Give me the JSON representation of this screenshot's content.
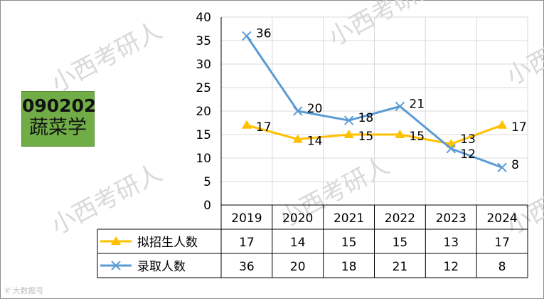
{
  "badge": {
    "code": "090202",
    "name": "蔬菜学"
  },
  "watermark": "小西考研人",
  "bottom_logo": "𝒞 大数据号",
  "colors": {
    "plan": "#ffc000",
    "admit": "#5b9bd5",
    "badge_bg": "#70ad47"
  },
  "chart_data": {
    "type": "line",
    "categories": [
      "2019",
      "2020",
      "2021",
      "2022",
      "2023",
      "2024"
    ],
    "series": [
      {
        "name": "拟招生人数",
        "values": [
          17,
          14,
          15,
          15,
          13,
          17
        ],
        "marker": "triangle"
      },
      {
        "name": "录取人数",
        "values": [
          36,
          20,
          18,
          21,
          12,
          8
        ],
        "marker": "x"
      }
    ],
    "ylim": [
      0,
      40
    ],
    "yticks": [
      0,
      5,
      10,
      15,
      20,
      25,
      30,
      35,
      40
    ],
    "grid": true,
    "data_table": true
  }
}
